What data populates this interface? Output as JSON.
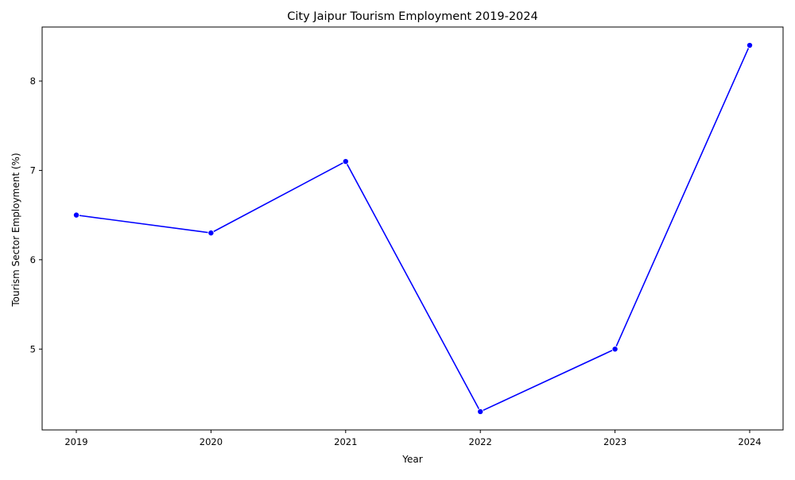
{
  "chart_data": {
    "type": "line",
    "title": "City Jaipur Tourism Employment 2019-2024",
    "xlabel": "Year",
    "ylabel": "Tourism Sector Employment (%)",
    "categories": [
      "2019",
      "2020",
      "2021",
      "2022",
      "2023",
      "2024"
    ],
    "series": [
      {
        "values": [
          6.5,
          6.3,
          7.1,
          4.3,
          5.0,
          8.4
        ],
        "color": "#0000ff",
        "marker": "circle"
      }
    ],
    "yticks": [
      5,
      6,
      7,
      8
    ],
    "ylim": [
      4.095,
      8.605
    ],
    "grid": false,
    "legend": "none"
  }
}
